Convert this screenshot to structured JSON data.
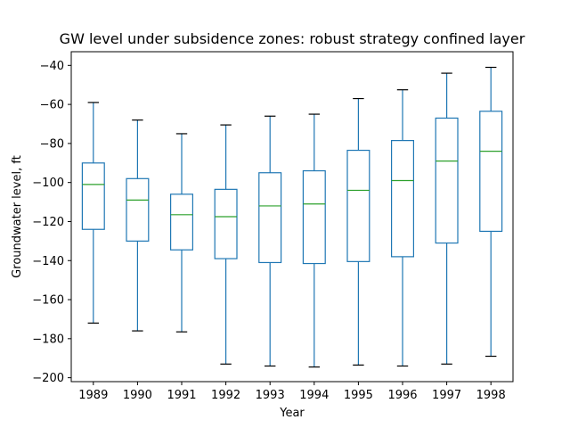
{
  "chart_data": {
    "type": "box",
    "title": "GW level under subsidence zones: robust strategy confined layer",
    "xlabel": "Year",
    "ylabel": "Groundwater level, ft",
    "ylim": [
      -202,
      -33
    ],
    "yticks": [
      -40,
      -60,
      -80,
      -100,
      -120,
      -140,
      -160,
      -180,
      -200
    ],
    "grid": false,
    "colors": {
      "box": "#1f77b4",
      "median": "#2ca02c",
      "cap": "#000000"
    },
    "categories": [
      "1989",
      "1990",
      "1991",
      "1992",
      "1993",
      "1994",
      "1995",
      "1996",
      "1997",
      "1998"
    ],
    "boxes": [
      {
        "category": "1989",
        "whisker_low": -172,
        "q1": -124,
        "median": -101,
        "q3": -90,
        "whisker_high": -59
      },
      {
        "category": "1990",
        "whisker_low": -176,
        "q1": -130,
        "median": -109,
        "q3": -98,
        "whisker_high": -68
      },
      {
        "category": "1991",
        "whisker_low": -176.5,
        "q1": -134.5,
        "median": -116.5,
        "q3": -106,
        "whisker_high": -75
      },
      {
        "category": "1992",
        "whisker_low": -193,
        "q1": -139,
        "median": -117.5,
        "q3": -103.5,
        "whisker_high": -70.5
      },
      {
        "category": "1993",
        "whisker_low": -194,
        "q1": -141,
        "median": -112,
        "q3": -95,
        "whisker_high": -66
      },
      {
        "category": "1994",
        "whisker_low": -194.5,
        "q1": -141.5,
        "median": -111,
        "q3": -94,
        "whisker_high": -65
      },
      {
        "category": "1995",
        "whisker_low": -193.5,
        "q1": -140.5,
        "median": -104,
        "q3": -83.5,
        "whisker_high": -57
      },
      {
        "category": "1996",
        "whisker_low": -194,
        "q1": -138,
        "median": -99,
        "q3": -78.5,
        "whisker_high": -52.5
      },
      {
        "category": "1997",
        "whisker_low": -193,
        "q1": -131,
        "median": -89,
        "q3": -67,
        "whisker_high": -44
      },
      {
        "category": "1998",
        "whisker_low": -189,
        "q1": -125,
        "median": -84,
        "q3": -63.5,
        "whisker_high": -41
      }
    ]
  }
}
